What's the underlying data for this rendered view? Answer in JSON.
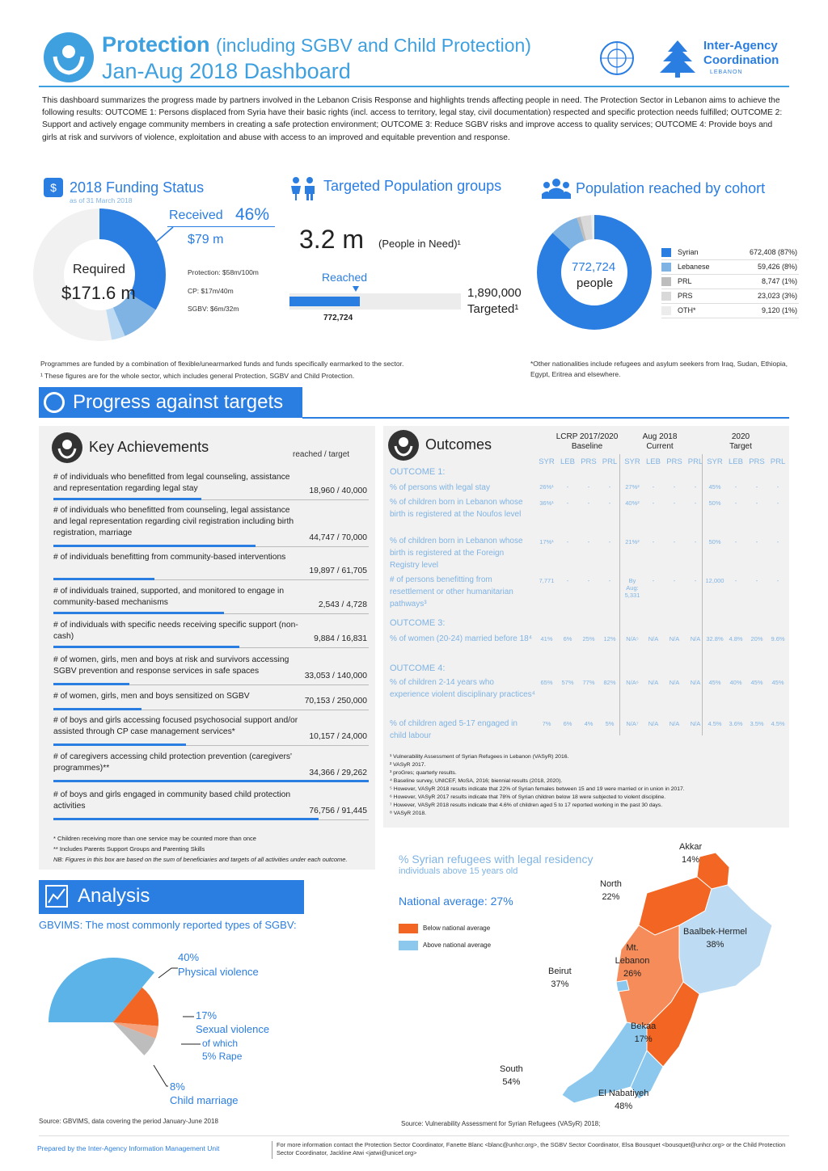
{
  "header": {
    "title_bold": "Protection",
    "title_sub": "(including SGBV and Child Protection)",
    "title_line2": "Jan-Aug 2018 Dashboard",
    "org": "Inter-Agency Coordination",
    "org_sub": "LEBANON"
  },
  "intro": "This dashboard summarizes the progress made by partners involved in the Lebanon Crisis Response and highlights trends affecting people in need. The Protection Sector in Lebanon aims to achieve the following results: OUTCOME 1: Persons displaced from Syria have their basic rights (incl. access to territory, legal stay, civil documentation) respected and specific protection needs fulfilled; OUTCOME 2: Support and actively engage community members in creating a safe protection environment; OUTCOME 3: Reduce SGBV risks and improve access to quality services; OUTCOME 4: Provide boys and girls at risk and survivors of violence, exploitation and abuse with access to an improved and equitable prevention and response.",
  "funding": {
    "title": "2018 Funding Status",
    "asof": "as of 31 March 2018",
    "received_label": "Received",
    "received_pct": "46%",
    "received_amt": "$79 m",
    "required_label": "Required",
    "required_amt": "$171.6 m",
    "breakdown": [
      "Protection: $58m/100m",
      "CP: $17m/40m",
      "SGBV: $6m/32m"
    ],
    "note1": "Programmes are funded by a combination of flexible/unearmarked funds and funds specifically earmarked to the sector.",
    "note2": "¹ These figures are for the whole sector, which includes general Protection, SGBV and Child Protection."
  },
  "targeted": {
    "title": "Targeted Population groups",
    "pin": "3.2 m",
    "pin_label": "(People in Need)¹",
    "reached_label": "Reached",
    "reached_val": "772,724",
    "targeted_val": "1,890,000",
    "targeted_label": "Targeted¹",
    "reached_fraction": 0.41
  },
  "cohort": {
    "title": "Population reached by cohort",
    "center_val": "772,724",
    "center_lbl": "people",
    "rows": [
      {
        "name": "Syrian",
        "val": "672,408 (87%)",
        "color": "#2a7de1"
      },
      {
        "name": "Lebanese",
        "val": "59,426 (8%)",
        "color": "#7fb3e3"
      },
      {
        "name": "PRL",
        "val": "8,747 (1%)",
        "color": "#bdbdbd"
      },
      {
        "name": "PRS",
        "val": "23,023 (3%)",
        "color": "#d9d9d9"
      },
      {
        "name": "OTH*",
        "val": "9,120 (1%)",
        "color": "#ececec"
      }
    ],
    "note": "*Other nationalities include refugees and asylum seekers from Iraq, Sudan, Ethiopia, Egypt, Eritrea and elsewhere."
  },
  "progress_title": "Progress against targets",
  "key_ach": {
    "title": "Key Achievements",
    "col": "reached / target",
    "rows": [
      {
        "text": "# of individuals who benefitted from legal counseling, assistance and representation regarding legal stay",
        "val": "18,960 / 40,000",
        "frac": 0.47
      },
      {
        "text": "# of individuals who benefitted from counseling, legal assistance and legal representation regarding civil registration including birth registration, marriage",
        "val": "44,747 / 70,000",
        "frac": 0.64
      },
      {
        "text": "# of individuals benefitting from community-based interventions",
        "val": "19,897 / 61,705",
        "frac": 0.32
      },
      {
        "text": "# of individuals trained, supported, and monitored to engage in community-based mechanisms",
        "val": "2,543 / 4,728",
        "frac": 0.54
      },
      {
        "text": "# of individuals with specific needs receiving specific support (non-cash)",
        "val": "9,884 / 16,831",
        "frac": 0.59
      },
      {
        "text": "# of women, girls, men and boys at risk and survivors accessing SGBV prevention and response services in safe spaces",
        "val": "33,053 / 140,000",
        "frac": 0.24
      },
      {
        "text": "# of women, girls, men and boys sensitized on SGBV",
        "val": "70,153 / 250,000",
        "frac": 0.28
      },
      {
        "text": "# of boys and girls accessing focused psychosocial support and/or assisted through CP case management services*",
        "val": "10,157 / 24,000",
        "frac": 0.42
      },
      {
        "text": "# of caregivers accessing child protection prevention (caregivers' programmes)**",
        "val": "34,366 / 29,262",
        "frac": 1.0
      },
      {
        "text": "# of boys and girls engaged in community based child protection activities",
        "val": "76,756 / 91,445",
        "frac": 0.84
      }
    ],
    "notes": [
      "* Children receiving more than one service may be counted more than once",
      "** Includes Parents Support Groups and Parenting Skills",
      "NB: Figures in this box are based on the sum of beneficiaries and targets of all activities under each outcome."
    ]
  },
  "outcomes": {
    "title": "Outcomes",
    "col_groups": [
      "LCRP 2017/2020 Baseline",
      "Aug 2018 Current",
      "2020 Target"
    ],
    "cols": [
      "SYR",
      "LEB",
      "PRS",
      "PRL"
    ],
    "o1": "OUTCOME 1:",
    "o3": "OUTCOME 3:",
    "o4": "OUTCOME 4:",
    "rows": [
      {
        "label": "% of persons with legal stay",
        "b": [
          "26%¹",
          "-",
          "-",
          "-"
        ],
        "c": [
          "27%²",
          "-",
          "-",
          "-"
        ],
        "t": [
          "45%",
          "-",
          "-",
          "-"
        ]
      },
      {
        "label": "% of children born in Lebanon whose birth is registered at the Noufos level",
        "b": [
          "36%¹",
          "-",
          "-",
          "-"
        ],
        "c": [
          "40%²",
          "-",
          "-",
          "-"
        ],
        "t": [
          "50%",
          "-",
          "-",
          "-"
        ]
      },
      {
        "label": "% of children born in Lebanon whose birth is registered at the Foreign Registry level",
        "b": [
          "17%¹",
          "-",
          "-",
          "-"
        ],
        "c": [
          "21%²",
          "-",
          "-",
          "-"
        ],
        "t": [
          "50%",
          "-",
          "-",
          "-"
        ]
      },
      {
        "label": "# of persons benefitting from resettlement or other humanitarian pathways³",
        "b": [
          "7,771",
          "-",
          "-",
          "-"
        ],
        "c": [
          "By Aug: 5,331",
          "-",
          "-",
          "-"
        ],
        "t": [
          "12,000",
          "-",
          "-",
          "-"
        ]
      },
      {
        "label": "% of women (20-24) married before 18⁴",
        "b": [
          "41%",
          "6%",
          "25%",
          "12%"
        ],
        "c": [
          "N/A⁵",
          "N/A",
          "N/A",
          "N/A"
        ],
        "t": [
          "32.8%",
          "4.8%",
          "20%",
          "9.6%"
        ]
      },
      {
        "label": "% of children 2-14 years who experience violent disciplinary practices⁴",
        "b": [
          "65%",
          "57%",
          "77%",
          "82%"
        ],
        "c": [
          "N/A⁶",
          "N/A",
          "N/A",
          "N/A"
        ],
        "t": [
          "45%",
          "40%",
          "45%",
          "45%"
        ]
      },
      {
        "label": "% of children aged 5-17 engaged in child labour",
        "b": [
          "7%",
          "6%",
          "4%",
          "5%"
        ],
        "c": [
          "N/A⁷",
          "N/A",
          "N/A",
          "N/A"
        ],
        "t": [
          "4.5%",
          "3.6%",
          "3.5%",
          "4.5%"
        ]
      }
    ],
    "notes": [
      "¹ Vulnerability Assessment of Syrian Refugees in Lebanon (VASyR) 2016.",
      "² VASyR 2017.",
      "³ proGres; quarterly results.",
      "⁴ Baseline survey, UNICEF, MoSA, 2016; biennial results (2018, 2020).",
      "⁵ However, VASyR 2018 results indicate that 22% of Syrian females between 15 and 19 were married or in union in 2017.",
      "⁶ However, VASyR 2017 results indicate that 78% of Syrian children below 18 were subjected to violent discipline.",
      "⁷ However, VASyR 2018 results indicate that 4.6% of children aged 5 to 17 reported working in the past 30 days.",
      "⁸ VASyR 2018."
    ]
  },
  "analysis": {
    "title": "Analysis",
    "subtitle": "GBVIMS: The most commonly reported types of SGBV:",
    "slices": [
      {
        "pct": "40%",
        "label": "Physical violence",
        "value": 40,
        "color": "#5cb3e8"
      },
      {
        "pct": "17%",
        "label": "Sexual violence",
        "value": 17,
        "color": "#f26522"
      },
      {
        "pct": "",
        "label": "of which 5% Rape",
        "value": 5,
        "color": "#f4a07a"
      },
      {
        "pct": "8%",
        "label": "Child marriage",
        "value": 8,
        "color": "#bdbdbd"
      }
    ],
    "sexual_sub": "of which",
    "rape": "5% Rape",
    "source": "Source: GBVIMS, data covering the period January-June 2018"
  },
  "map": {
    "title": "% Syrian refugees with legal residency",
    "subtitle": "individuals above 15 years old",
    "national": "National average: 27%",
    "legend_below": "Below national average",
    "legend_above": "Above national average",
    "c_below": "#f26522",
    "c_above": "#8cc8ee",
    "regions": [
      {
        "name": "Akkar",
        "pct": "14%"
      },
      {
        "name": "North",
        "pct": "22%"
      },
      {
        "name": "Baalbek-Hermel",
        "pct": "38%"
      },
      {
        "name": "Mt. Lebanon",
        "pct": "26%"
      },
      {
        "name": "Beirut",
        "pct": "37%"
      },
      {
        "name": "Bekaa",
        "pct": "17%"
      },
      {
        "name": "South",
        "pct": "54%"
      },
      {
        "name": "El Nabatiyeh",
        "pct": "48%"
      }
    ],
    "source": "Source: Vulnerability Assessment for Syrian Refugees (VASyR) 2018;"
  },
  "footer": {
    "left": "Prepared by the Inter-Agency Information Management Unit",
    "right": "For more information contact the Protection Sector Coordinator, Fanette Blanc <blanc@unhcr.org>, the SGBV Sector Coordinator, Elsa Bousquet <bousquet@unhcr.org> or the Child Protection Sector Coordinator, Jackline Atwi <jatwi@unicef.org>"
  }
}
